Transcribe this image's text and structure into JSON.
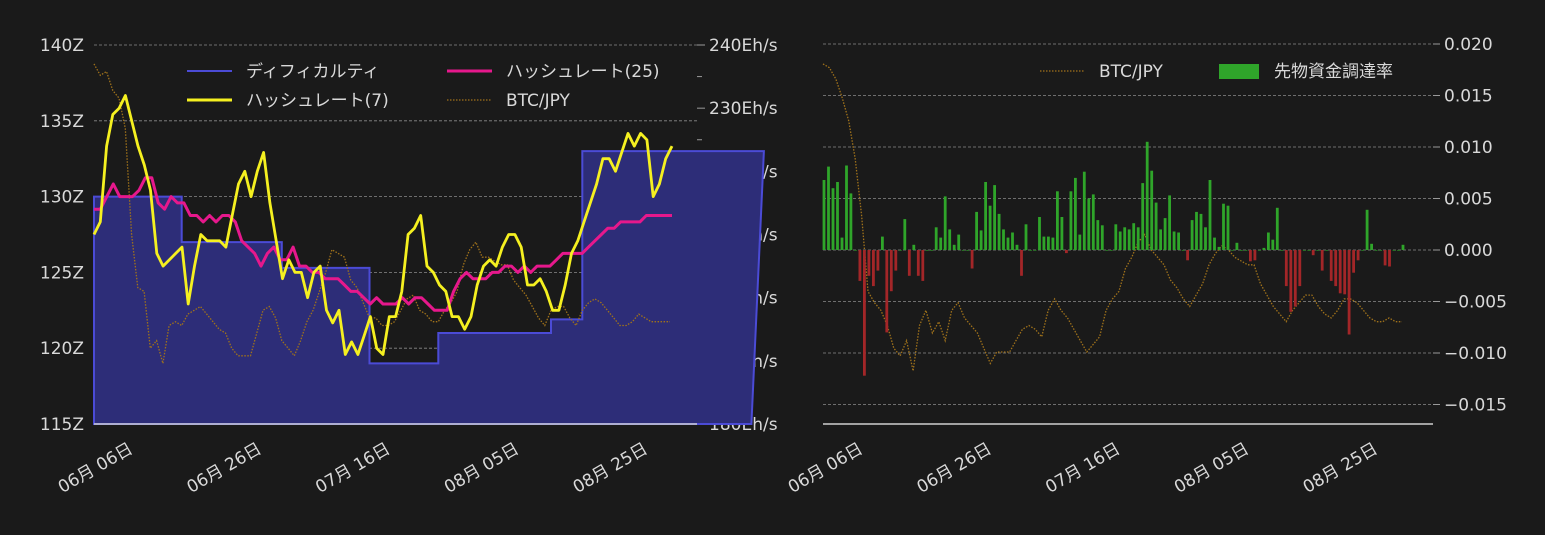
{
  "chart_data": [
    {
      "type": "line",
      "x_ticks": [
        "06月 06日",
        "06月 26日",
        "07月 16日",
        "08月 05日",
        "08月 25日"
      ],
      "y_left": {
        "ticks": [
          "115Z",
          "120Z",
          "125Z",
          "130Z",
          "135Z",
          "140Z"
        ],
        "range": [
          115,
          140
        ]
      },
      "y_right": {
        "ticks": [
          "180Eh/s",
          "190Eh/s",
          "200Eh/s",
          "210Eh/s",
          "220Eh/s",
          "230Eh/s",
          "240Eh/s"
        ],
        "range": [
          180,
          240
        ]
      },
      "grid": true,
      "legend": [
        "ディフィカルティ",
        "ハッシュレート(25)",
        "ハッシュレート(7)",
        "BTC/JPY"
      ],
      "legend_position": "top",
      "series": {
        "difficulty": {
          "name": "ディフィカルティ",
          "color": "#4b4bd6",
          "fill": "#2d2d78",
          "axis": "left",
          "x": [
            0,
            14,
            14,
            30,
            30,
            44,
            44,
            55,
            55,
            73,
            73,
            78,
            78,
            90,
            90,
            105,
            105,
            107
          ],
          "values": [
            130,
            130,
            127,
            127,
            125.3,
            125.3,
            119,
            119,
            121,
            121,
            121.9,
            121.9,
            133,
            133,
            133,
            133,
            133,
            133
          ]
        },
        "hashrate25": {
          "name": "ハッシュレート(25)",
          "color": "#e6188c",
          "axis": "right",
          "values": [
            214,
            214,
            216,
            218,
            216,
            216,
            216,
            217,
            219,
            219,
            215,
            214,
            216,
            215,
            215,
            213,
            213,
            212,
            213,
            212,
            213,
            213,
            212,
            209,
            208,
            207,
            205,
            207,
            208,
            206,
            206,
            208,
            205,
            205,
            204,
            204,
            203,
            203,
            203,
            202,
            201,
            201,
            200,
            199,
            200,
            199,
            199,
            199,
            200,
            199,
            200,
            200,
            199,
            198,
            198,
            198,
            201,
            203,
            204,
            203,
            203,
            203,
            204,
            204,
            205,
            205,
            204,
            205,
            204,
            205,
            205,
            205,
            206,
            207,
            207,
            207,
            207,
            208,
            209,
            210,
            211,
            211,
            212,
            212,
            212,
            212,
            213,
            213,
            213,
            213,
            213
          ]
        },
        "hashrate7": {
          "name": "ハッシュレート(7)",
          "color": "#f5f020",
          "axis": "right",
          "values": [
            210,
            212,
            224,
            229,
            230,
            232,
            228,
            224,
            221,
            217,
            207,
            205,
            206,
            207,
            208,
            199,
            205,
            210,
            209,
            209,
            209,
            208,
            213,
            218,
            220,
            216,
            220,
            223,
            215,
            209,
            203,
            206,
            204,
            204,
            200,
            204,
            205,
            198,
            196,
            198,
            191,
            193,
            191,
            194,
            197,
            192,
            191,
            197,
            197,
            201,
            210,
            211,
            213,
            205,
            204,
            202,
            201,
            197,
            197,
            195,
            197,
            202,
            205,
            206,
            205,
            208,
            210,
            210,
            208,
            202,
            202,
            203,
            201,
            198,
            198,
            202,
            207,
            209,
            212,
            215,
            218,
            222,
            222,
            220,
            223,
            226,
            224,
            226,
            225,
            216,
            218,
            222,
            224
          ]
        },
        "btc": {
          "name": "BTC/JPY",
          "color": "#a0721a",
          "values": [
            0.95,
            0.92,
            0.93,
            0.88,
            0.86,
            0.78,
            0.5,
            0.36,
            0.35,
            0.2,
            0.22,
            0.16,
            0.26,
            0.27,
            0.26,
            0.29,
            0.3,
            0.31,
            0.29,
            0.27,
            0.25,
            0.24,
            0.2,
            0.18,
            0.18,
            0.18,
            0.24,
            0.3,
            0.31,
            0.28,
            0.22,
            0.2,
            0.18,
            0.22,
            0.27,
            0.3,
            0.35,
            0.4,
            0.46,
            0.45,
            0.44,
            0.38,
            0.36,
            0.32,
            0.28,
            0.28,
            0.26,
            0.26,
            0.27,
            0.3,
            0.33,
            0.34,
            0.3,
            0.29,
            0.27,
            0.27,
            0.3,
            0.32,
            0.35,
            0.42,
            0.46,
            0.48,
            0.44,
            0.44,
            0.43,
            0.42,
            0.42,
            0.38,
            0.36,
            0.34,
            0.31,
            0.28,
            0.26,
            0.3,
            0.31,
            0.31,
            0.28,
            0.26,
            0.3,
            0.32,
            0.33,
            0.32,
            0.3,
            0.28,
            0.26,
            0.26,
            0.27,
            0.29,
            0.28,
            0.27,
            0.27,
            0.27,
            0.27
          ]
        }
      }
    },
    {
      "type": "bar",
      "x_ticks": [
        "06月 06日",
        "06月 26日",
        "07月 16日",
        "08月 05日",
        "08月 25日"
      ],
      "y_right": {
        "ticks": [
          "0.020",
          "0.015",
          "0.010",
          "0.005",
          "0.000",
          "−0.005",
          "−0.010",
          "−0.015"
        ],
        "range": [
          -0.017,
          0.02
        ]
      },
      "grid": true,
      "legend": [
        "BTC/JPY",
        "先物資金調達率"
      ],
      "legend_position": "top-right",
      "colors": {
        "positive": "#2fa52a",
        "negative": "#a32628"
      },
      "series": [
        {
          "name": "先物資金調達率",
          "values": [
            0.0068,
            0.0081,
            0.006,
            0.0066,
            0.0012,
            0.0082,
            0.0055,
            0.0,
            -0.003,
            -0.0122,
            -0.0025,
            -0.0035,
            -0.002,
            0.0013,
            -0.008,
            -0.004,
            -0.002,
            0.0,
            0.003,
            -0.0025,
            0.0005,
            -0.0025,
            -0.003,
            0.0,
            0.0,
            0.0022,
            0.0012,
            0.0052,
            0.002,
            0.0005,
            0.0015,
            0.0,
            0.0,
            -0.0018,
            0.0037,
            0.0019,
            0.0066,
            0.0043,
            0.0063,
            0.0035,
            0.002,
            0.0012,
            0.0017,
            0.0005,
            -0.0025,
            0.0025,
            0.0,
            0.0,
            0.0032,
            0.0013,
            0.0013,
            0.0012,
            0.0057,
            0.0032,
            -0.0003,
            0.0057,
            0.007,
            0.0015,
            0.0076,
            0.005,
            0.0054,
            0.0029,
            0.0024,
            0.0,
            0.0,
            0.0025,
            0.0018,
            0.0022,
            0.002,
            0.0026,
            0.0022,
            0.0065,
            0.0105,
            0.0077,
            0.0046,
            0.002,
            0.0031,
            0.0053,
            0.0018,
            0.0017,
            0.0,
            -0.001,
            0.0029,
            0.0037,
            0.0035,
            0.0022,
            0.0068,
            0.0012,
            0.0003,
            0.0045,
            0.0043,
            0.0,
            0.0007,
            0.0,
            0.0,
            -0.0011,
            -0.001,
            0.0,
            0.0002,
            0.0017,
            0.001,
            0.0041,
            0.0,
            -0.0035,
            -0.006,
            -0.0055,
            -0.0035,
            0.0,
            0.0,
            -0.0005,
            0.0,
            -0.002,
            0.0,
            -0.003,
            -0.0035,
            -0.0042,
            -0.0043,
            -0.0082,
            -0.0022,
            -0.001,
            0.0,
            0.0039,
            0.0006,
            0.0,
            0.0,
            -0.0015,
            -0.0016,
            0.0,
            0.0,
            0.0005
          ]
        }
      ],
      "btc": {
        "name": "BTC/JPY",
        "color": "#a0721a",
        "values": [
          0.95,
          0.94,
          0.91,
          0.86,
          0.8,
          0.7,
          0.55,
          0.35,
          0.32,
          0.3,
          0.26,
          0.2,
          0.18,
          0.22,
          0.14,
          0.26,
          0.3,
          0.24,
          0.27,
          0.22,
          0.3,
          0.32,
          0.28,
          0.26,
          0.24,
          0.2,
          0.16,
          0.19,
          0.19,
          0.19,
          0.22,
          0.25,
          0.26,
          0.25,
          0.23,
          0.3,
          0.33,
          0.3,
          0.28,
          0.25,
          0.22,
          0.19,
          0.21,
          0.23,
          0.3,
          0.33,
          0.35,
          0.41,
          0.44,
          0.48,
          0.5,
          0.46,
          0.44,
          0.42,
          0.38,
          0.36,
          0.33,
          0.31,
          0.34,
          0.37,
          0.42,
          0.45,
          0.47,
          0.46,
          0.44,
          0.43,
          0.42,
          0.42,
          0.37,
          0.34,
          0.31,
          0.29,
          0.27,
          0.3,
          0.32,
          0.34,
          0.34,
          0.31,
          0.29,
          0.28,
          0.3,
          0.33,
          0.33,
          0.32,
          0.3,
          0.28,
          0.27,
          0.27,
          0.28,
          0.27,
          0.27
        ]
      }
    }
  ]
}
